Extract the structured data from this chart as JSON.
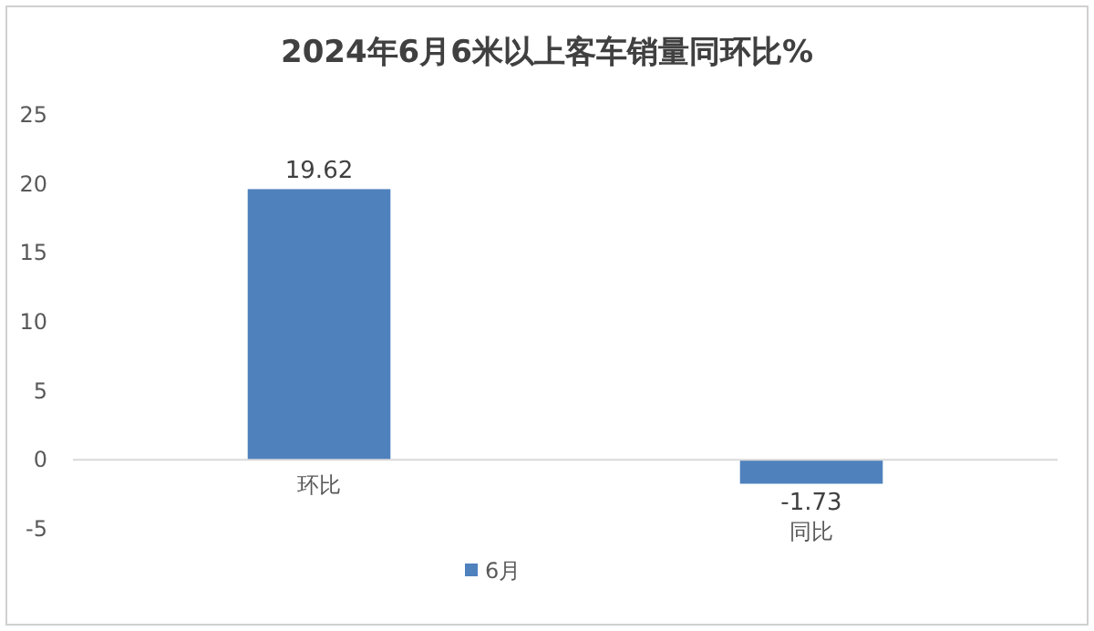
{
  "chart_data": {
    "type": "bar",
    "title": "2024年6月6米以上客车销量同环比%",
    "categories": [
      "环比",
      "同比"
    ],
    "series": [
      {
        "name": "6月",
        "color": "#4f81bd",
        "values": [
          19.62,
          -1.73
        ]
      }
    ],
    "ylim": [
      -5,
      25
    ],
    "yticks": [
      -5,
      0,
      5,
      10,
      15,
      20,
      25
    ],
    "data_labels": true,
    "legend": "bottom"
  }
}
